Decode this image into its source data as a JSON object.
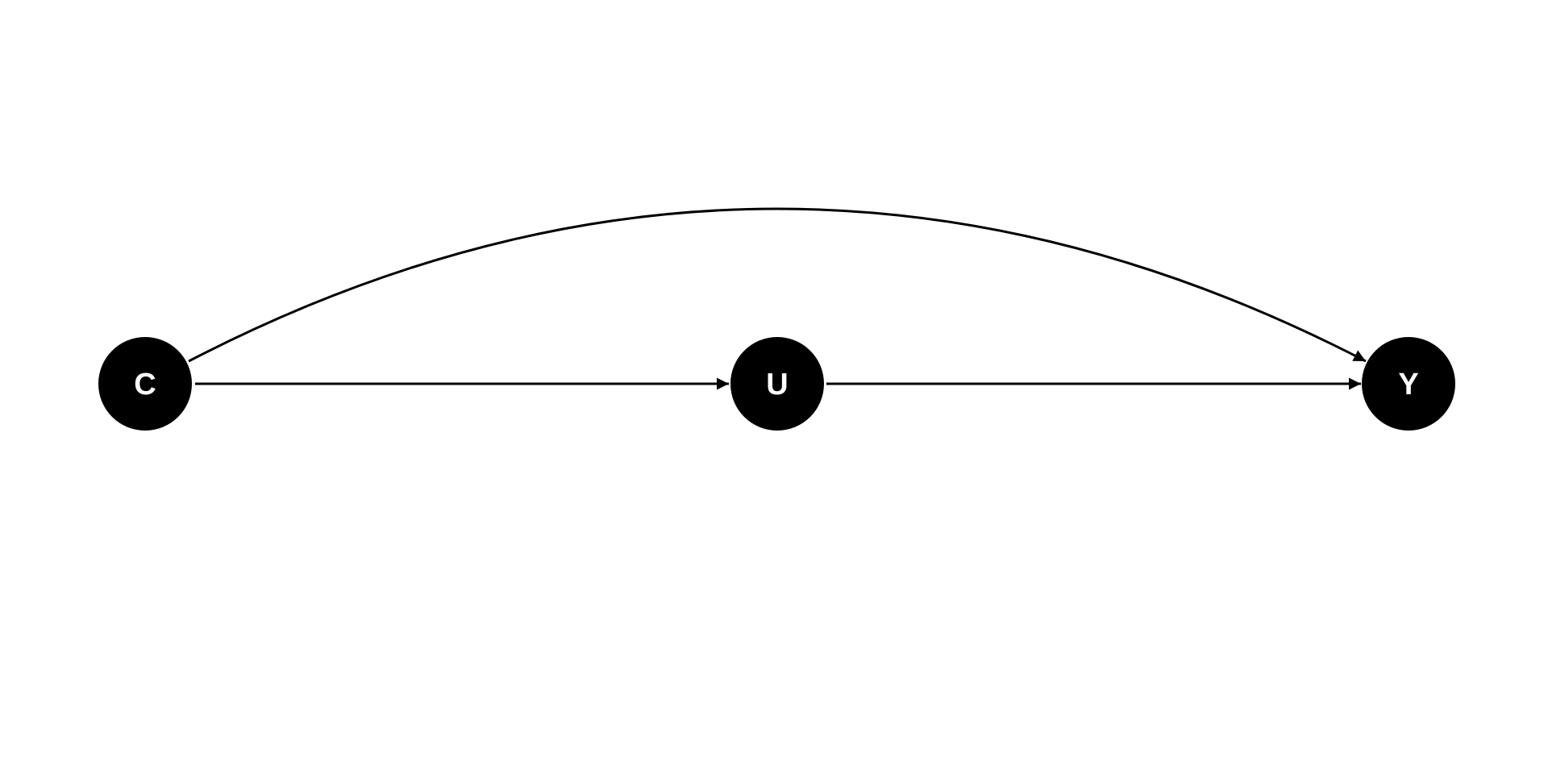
{
  "diagram": {
    "type": "directed-acyclic-graph",
    "node_fill": "#000000",
    "label_color": "#ffffff",
    "edge_color": "#000000",
    "nodes": [
      {
        "id": "C",
        "label": "C"
      },
      {
        "id": "U",
        "label": "U"
      },
      {
        "id": "Y",
        "label": "Y"
      }
    ],
    "edges": [
      {
        "from": "C",
        "to": "U",
        "shape": "straight"
      },
      {
        "from": "U",
        "to": "Y",
        "shape": "straight"
      },
      {
        "from": "C",
        "to": "Y",
        "shape": "curved"
      }
    ]
  }
}
